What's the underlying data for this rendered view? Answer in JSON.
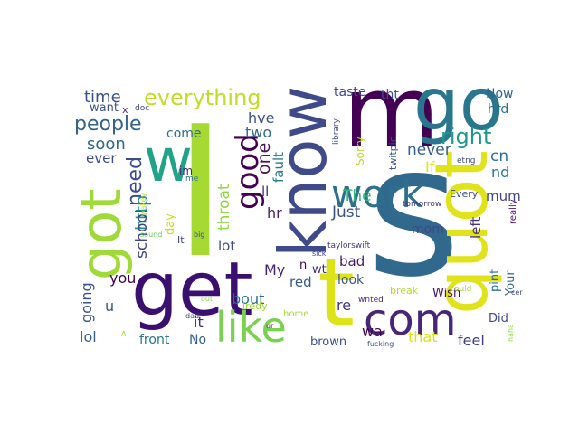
{
  "words": [
    {
      "text": "I",
      "color": "#a6d931"
    },
    {
      "text": "s",
      "color": "#31688e"
    },
    {
      "text": "get",
      "color": "#3b0f70"
    },
    {
      "text": "know",
      "color": "#3e4a89"
    },
    {
      "text": "t",
      "color": "#dce319"
    },
    {
      "text": "quot",
      "color": "#e0e31a"
    },
    {
      "text": "m",
      "color": "#440154"
    },
    {
      "text": "go",
      "color": "#2a768e"
    },
    {
      "text": "got",
      "color": "#a0da39"
    },
    {
      "text": "w",
      "color": "#20a386"
    },
    {
      "text": "com",
      "color": "#482677"
    },
    {
      "text": "work",
      "color": "#2d708e"
    },
    {
      "text": "like",
      "color": "#7ad151"
    },
    {
      "text": "good",
      "color": "#440154"
    },
    {
      "text": "everything",
      "color": "#bddf26"
    },
    {
      "text": "people",
      "color": "#33638d"
    },
    {
      "text": "right",
      "color": "#1f988b"
    },
    {
      "text": "time",
      "color": "#3b528b"
    },
    {
      "text": "soon",
      "color": "#30697e"
    },
    {
      "text": "need",
      "color": "#3d4d8a"
    },
    {
      "text": "http",
      "color": "#21918c"
    },
    {
      "text": "school",
      "color": "#414487"
    },
    {
      "text": "one",
      "color": "#471164"
    },
    {
      "text": "throat",
      "color": "#8fd744"
    },
    {
      "text": "hve",
      "color": "#3b528b"
    },
    {
      "text": "two",
      "color": "#31688e"
    },
    {
      "text": "come",
      "color": "#2f6c8e"
    },
    {
      "text": "fault",
      "color": "#29798e"
    },
    {
      "text": "ll",
      "color": "#472c7a"
    },
    {
      "text": "hr",
      "color": "#482173"
    },
    {
      "text": "Just",
      "color": "#3b528b"
    },
    {
      "text": "The",
      "color": "#35b779"
    },
    {
      "text": "never",
      "color": "#355f8d"
    },
    {
      "text": "If",
      "color": "#e5e419"
    },
    {
      "text": "cn",
      "color": "#2c728e"
    },
    {
      "text": "nd",
      "color": "#2a788e"
    },
    {
      "text": "mum",
      "color": "#414487"
    },
    {
      "text": "mom",
      "color": "#3f4788"
    },
    {
      "text": "left",
      "color": "#46337e"
    },
    {
      "text": "taste",
      "color": "#3e4a89"
    },
    {
      "text": "tht",
      "color": "#3b528b"
    },
    {
      "text": "Now",
      "color": "#33638d"
    },
    {
      "text": "hrd",
      "color": "#2e6e8e"
    },
    {
      "text": "want",
      "color": "#3b528b"
    },
    {
      "text": "x",
      "color": "#482878"
    },
    {
      "text": "doc",
      "color": "#404387"
    },
    {
      "text": "ever",
      "color": "#3e4989"
    },
    {
      "text": "going",
      "color": "#3c508b"
    },
    {
      "text": "you",
      "color": "#440154"
    },
    {
      "text": "u",
      "color": "#3b528b"
    },
    {
      "text": "lol",
      "color": "#35608d"
    },
    {
      "text": "front",
      "color": "#2b748e"
    },
    {
      "text": "No",
      "color": "#365c8d"
    },
    {
      "text": "it",
      "color": "#472a7a"
    },
    {
      "text": "bout",
      "color": "#2d708e"
    },
    {
      "text": "My",
      "color": "#482475"
    },
    {
      "text": "red",
      "color": "#38598c"
    },
    {
      "text": "lot",
      "color": "#3e4c8a"
    },
    {
      "text": "re",
      "color": "#46337e"
    },
    {
      "text": "wa",
      "color": "#440154"
    },
    {
      "text": "that",
      "color": "#d8e219"
    },
    {
      "text": "feel",
      "color": "#433e85"
    },
    {
      "text": "Did",
      "color": "#404688"
    },
    {
      "text": "brown",
      "color": "#3d4e8a"
    },
    {
      "text": "bad",
      "color": "#481b6d"
    },
    {
      "text": "look",
      "color": "#3a548c"
    },
    {
      "text": "wt",
      "color": "#472d7b"
    },
    {
      "text": "n",
      "color": "#440154"
    },
    {
      "text": "Wish",
      "color": "#471063"
    },
    {
      "text": "pint",
      "color": "#2c718e"
    },
    {
      "text": "Your",
      "color": "#31678e"
    },
    {
      "text": "Every",
      "color": "#3b528b"
    },
    {
      "text": "really",
      "color": "#481769"
    },
    {
      "text": "etng",
      "color": "#3e4989"
    },
    {
      "text": "Sorry",
      "color": "#b5de2b"
    },
    {
      "text": "library",
      "color": "#404688"
    },
    {
      "text": "twitpic",
      "color": "#39558c"
    },
    {
      "text": "tomorrow",
      "color": "#453781"
    },
    {
      "text": "day",
      "color": "#c0df25"
    },
    {
      "text": "It",
      "color": "#3f4889"
    },
    {
      "text": "wakey",
      "color": "#bade28"
    },
    {
      "text": "big",
      "color": "#404588"
    },
    {
      "text": "sound",
      "color": "#6ccd5a"
    },
    {
      "text": "im",
      "color": "#482979"
    },
    {
      "text": "me",
      "color": "#2d718e"
    },
    {
      "text": "sick",
      "color": "#404387"
    },
    {
      "text": "taylorswift",
      "color": "#46327e"
    },
    {
      "text": "Gh",
      "color": "#2c738e"
    },
    {
      "text": "iredy",
      "color": "#9dd93b"
    },
    {
      "text": "wnted",
      "color": "#482677"
    },
    {
      "text": "break",
      "color": "#b0dd2f"
    },
    {
      "text": "could",
      "color": "#a2da37"
    },
    {
      "text": "home",
      "color": "#a8db34"
    },
    {
      "text": "ur",
      "color": "#482475"
    },
    {
      "text": "dad",
      "color": "#3e4a89"
    },
    {
      "text": "out",
      "color": "#8bd646"
    },
    {
      "text": "A",
      "color": "#9bd93c"
    },
    {
      "text": "fucking",
      "color": "#3b528b"
    },
    {
      "text": "haha",
      "color": "#94d840"
    },
    {
      "text": "cer",
      "color": "#3f4788"
    }
  ]
}
